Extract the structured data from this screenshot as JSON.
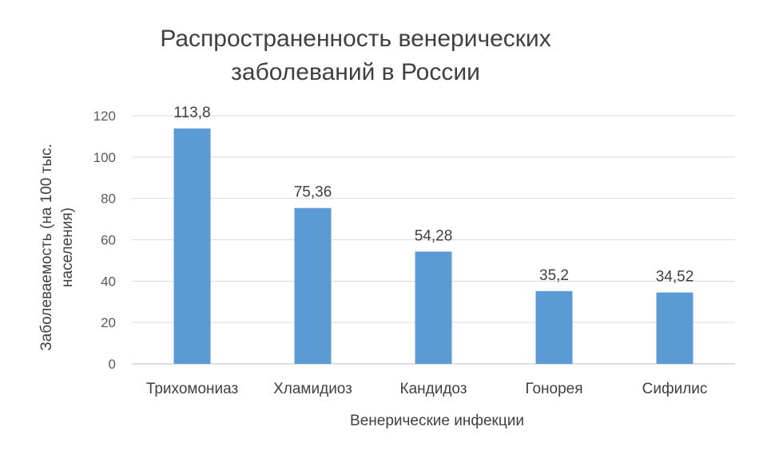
{
  "chart_data": {
    "type": "bar",
    "title_lines": [
      "Распространенность венерических",
      "заболеваний в России"
    ],
    "xlabel": "Венерические  инфекции",
    "ylabel_lines": [
      "Заболеваемость (на 100 тыс.",
      "населения)"
    ],
    "categories": [
      "Трихомониаз",
      "Хламидиоз",
      "Кандидоз",
      "Гонорея",
      "Сифилис"
    ],
    "values": [
      113.8,
      75.36,
      54.28,
      35.2,
      34.52
    ],
    "value_labels": [
      "113,8",
      "75,36",
      "54,28",
      "35,2",
      "34,52"
    ],
    "ylim": [
      0,
      120
    ],
    "yticks": [
      0,
      20,
      40,
      60,
      80,
      100,
      120
    ],
    "grid": true,
    "bar_color": "#5b9bd5"
  }
}
